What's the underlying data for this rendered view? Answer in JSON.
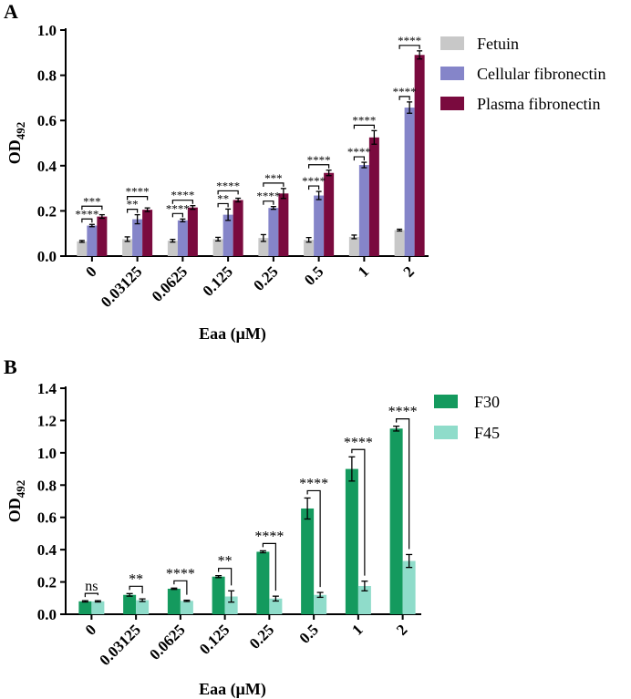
{
  "chart_data": [
    {
      "panel": "A",
      "type": "bar",
      "xlabel": "Eaa (μM)",
      "ylabel_main": "OD",
      "ylabel_sub": "492",
      "ylim": [
        0,
        1.0
      ],
      "yticks": [
        "0.0",
        "0.2",
        "0.4",
        "0.6",
        "0.8",
        "1.0"
      ],
      "ytick_values": [
        0,
        0.2,
        0.4,
        0.6,
        0.8,
        1.0
      ],
      "categories": [
        "0",
        "0.03125",
        "0.0625",
        "0.125",
        "0.25",
        "0.5",
        "1",
        "2"
      ],
      "legend_position": "right",
      "series": [
        {
          "name": "Fetuin",
          "color": "#c8c8c8",
          "values": [
            0.065,
            0.075,
            0.068,
            0.075,
            0.08,
            0.072,
            0.085,
            0.115
          ],
          "errors": [
            0.004,
            0.01,
            0.006,
            0.008,
            0.015,
            0.01,
            0.008,
            0.004
          ]
        },
        {
          "name": "Cellular fibronectin",
          "color": "#8585c9",
          "values": [
            0.135,
            0.163,
            0.158,
            0.183,
            0.213,
            0.268,
            0.403,
            0.657
          ],
          "errors": [
            0.005,
            0.02,
            0.006,
            0.025,
            0.006,
            0.018,
            0.012,
            0.025
          ]
        },
        {
          "name": "Plasma fibronectin",
          "color": "#7a0a3e",
          "values": [
            0.175,
            0.205,
            0.215,
            0.248,
            0.277,
            0.368,
            0.525,
            0.89
          ],
          "errors": [
            0.008,
            0.008,
            0.008,
            0.008,
            0.022,
            0.012,
            0.03,
            0.018
          ]
        }
      ],
      "significance": [
        {
          "category": 0,
          "upper": "***",
          "lower": "****"
        },
        {
          "category": 1,
          "upper": "****",
          "lower": "**"
        },
        {
          "category": 2,
          "upper": "****",
          "lower": "****"
        },
        {
          "category": 3,
          "upper": "****",
          "lower": "**"
        },
        {
          "category": 4,
          "upper": "***",
          "lower": "****"
        },
        {
          "category": 5,
          "upper": "****",
          "lower": "****"
        },
        {
          "category": 6,
          "upper": "****",
          "lower": "****"
        },
        {
          "category": 7,
          "upper": "****",
          "lower": "****"
        }
      ]
    },
    {
      "panel": "B",
      "type": "bar",
      "xlabel": "Eaa (μM)",
      "ylabel_main": "OD",
      "ylabel_sub": "492",
      "ylim": [
        0,
        1.4
      ],
      "yticks": [
        "0.0",
        "0.2",
        "0.4",
        "0.6",
        "0.8",
        "1.0",
        "1.2",
        "1.4"
      ],
      "ytick_values": [
        0,
        0.2,
        0.4,
        0.6,
        0.8,
        1.0,
        1.2,
        1.4
      ],
      "categories": [
        "0",
        "0.03125",
        "0.0625",
        "0.125",
        "0.25",
        "0.5",
        "1",
        "2"
      ],
      "legend_position": "right",
      "series": [
        {
          "name": "F30",
          "color": "#149a5e",
          "values": [
            0.08,
            0.12,
            0.158,
            0.233,
            0.387,
            0.655,
            0.9,
            1.15
          ],
          "errors": [
            0.004,
            0.008,
            0.004,
            0.006,
            0.006,
            0.065,
            0.075,
            0.015
          ]
        },
        {
          "name": "F45",
          "color": "#8fdcca",
          "values": [
            0.08,
            0.087,
            0.083,
            0.11,
            0.097,
            0.12,
            0.175,
            0.33
          ],
          "errors": [
            0.004,
            0.008,
            0.004,
            0.035,
            0.015,
            0.015,
            0.03,
            0.04
          ]
        }
      ],
      "significance": [
        "ns",
        "**",
        "****",
        "**",
        "****",
        "****",
        "****",
        "****"
      ]
    }
  ]
}
